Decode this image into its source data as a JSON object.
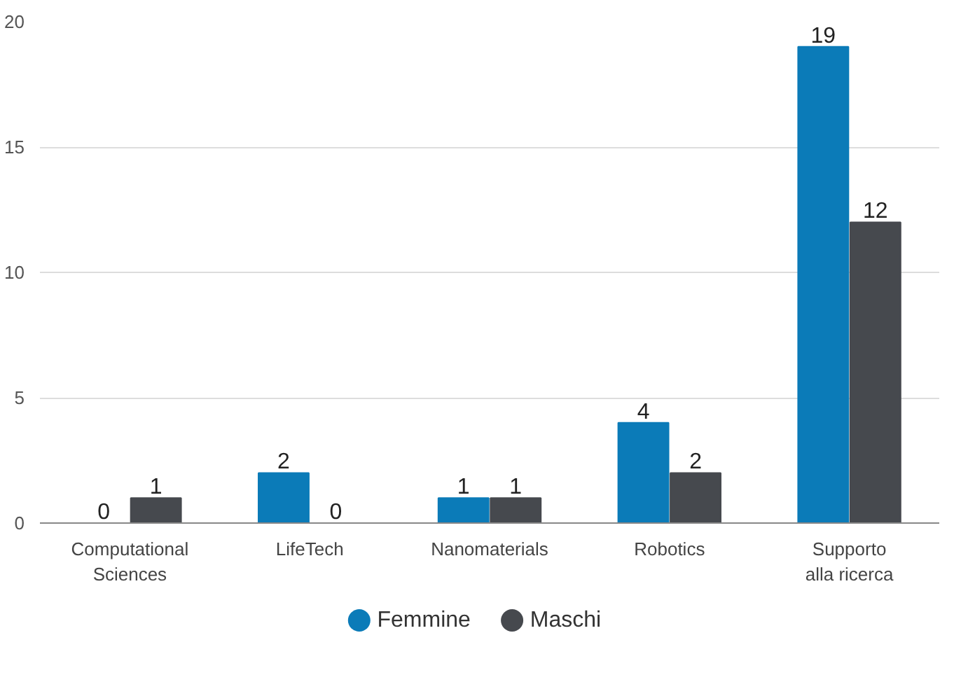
{
  "chart_data": {
    "type": "bar",
    "categories": [
      "Computational Sciences",
      "LifeTech",
      "Nanomaterials",
      "Robotics",
      "Supporto alla ricerca"
    ],
    "series": [
      {
        "name": "Femmine",
        "color": "#0b7bb8",
        "values": [
          0,
          2,
          1,
          4,
          19
        ]
      },
      {
        "name": "Maschi",
        "color": "#46494e",
        "values": [
          1,
          0,
          1,
          2,
          12
        ]
      }
    ],
    "ylim": [
      0,
      20
    ],
    "yticks": [
      0,
      5,
      10,
      15,
      20
    ],
    "grid": "y",
    "legend": "bottom",
    "data_labels": true
  }
}
